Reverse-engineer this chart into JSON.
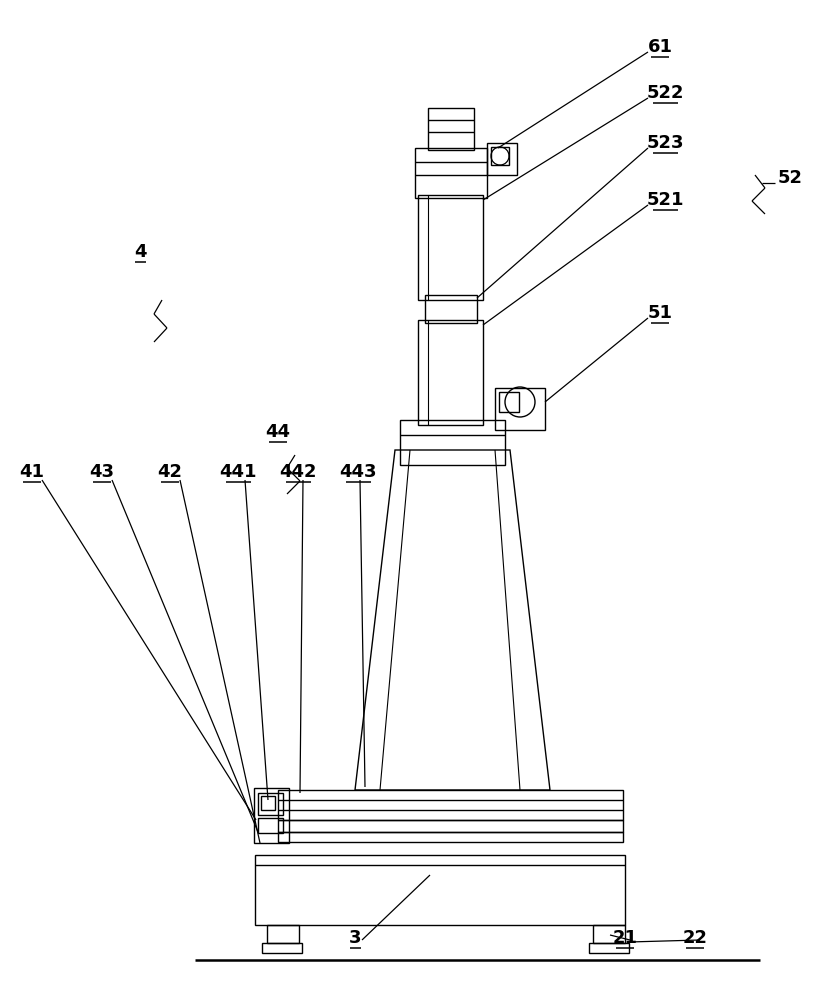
{
  "bg_color": "#ffffff",
  "line_color": "#000000",
  "lw": 1.0,
  "tlw": 1.8,
  "figsize": [
    8.19,
    10.0
  ],
  "dpi": 100
}
